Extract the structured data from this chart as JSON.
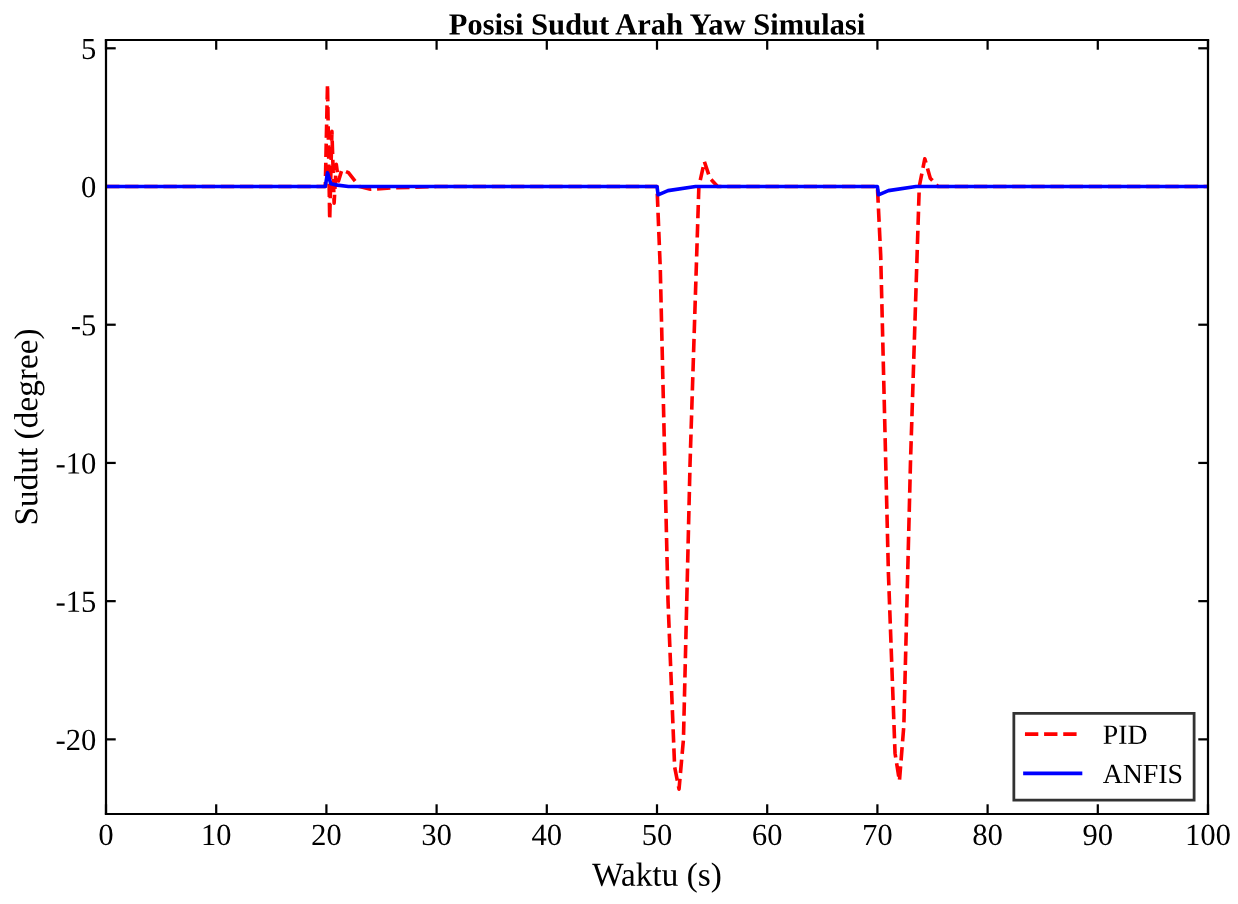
{
  "chart_data": {
    "type": "line",
    "title": "Posisi Sudut Arah Yaw Simulasi",
    "xlabel": "Waktu (s)",
    "ylabel": "Sudut (degree)",
    "xlim": [
      0,
      100
    ],
    "xticks": [
      0,
      10,
      20,
      30,
      40,
      50,
      60,
      70,
      80,
      90,
      100
    ],
    "ylim": [
      -22.7,
      5.3
    ],
    "yticks": [
      -20,
      -15,
      -10,
      -5,
      0,
      5
    ],
    "grid": false,
    "legend": "bottom right",
    "series": [
      {
        "name": "PID",
        "color": "#ff0000",
        "line_style": "dashed",
        "x": [
          0,
          19.9,
          20.1,
          20.3,
          20.5,
          20.7,
          20.9,
          21.1,
          21.4,
          22,
          23,
          24,
          26,
          30,
          50,
          50.3,
          51,
          51.6,
          52,
          52.4,
          53,
          53.8,
          54.3,
          54.8,
          55.5,
          60,
          70,
          70.3,
          71,
          71.6,
          72,
          72.4,
          73,
          73.8,
          74.3,
          74.8,
          75.5,
          100
        ],
        "values": [
          0,
          0,
          3.7,
          -1.2,
          2.0,
          -0.6,
          0.8,
          0.2,
          0.6,
          0.5,
          0,
          -0.1,
          -0.05,
          0,
          0,
          -3,
          -15,
          -21,
          -21.8,
          -20,
          -10,
          0,
          0.9,
          0.3,
          0,
          0,
          0,
          -2.5,
          -14,
          -20.5,
          -21.5,
          -19.5,
          -10,
          0,
          1.0,
          0.3,
          0,
          0
        ]
      },
      {
        "name": "ANFIS",
        "color": "#0000ff",
        "line_style": "solid",
        "x": [
          0,
          19.9,
          20.1,
          20.4,
          21,
          22,
          50,
          50.1,
          51,
          53.5,
          70,
          70.1,
          71,
          73.5,
          100
        ],
        "values": [
          0,
          0,
          0.5,
          0.1,
          0.05,
          0,
          0,
          -0.3,
          -0.15,
          0,
          0,
          -0.3,
          -0.15,
          0,
          0
        ]
      }
    ]
  }
}
